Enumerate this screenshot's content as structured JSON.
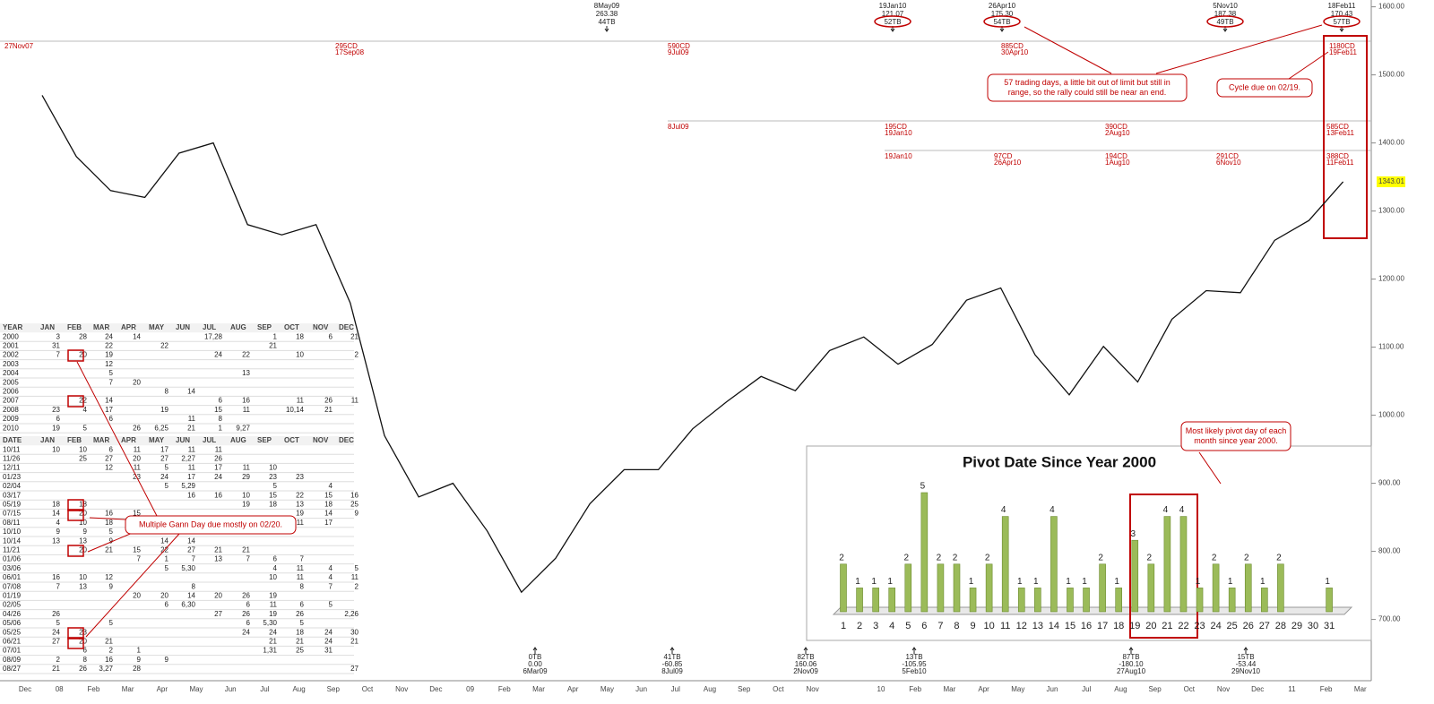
{
  "chart_data": [
    {
      "type": "line",
      "color": "#111111",
      "categories": [
        "Dec",
        "08",
        "Feb",
        "Mar",
        "Apr",
        "May",
        "Jun",
        "Jul",
        "Aug",
        "Sep",
        "Oct",
        "Nov",
        "Dec",
        "09",
        "Feb",
        "Mar",
        "Apr",
        "May",
        "Jun",
        "Jul",
        "Aug",
        "Sep",
        "Oct",
        "Nov",
        null,
        "10",
        "Feb",
        "Mar",
        "Apr",
        "May",
        "Jun",
        "Jul",
        "Aug",
        "Sep",
        "Oct",
        "Nov",
        "Dec",
        "11",
        "Feb",
        "Mar"
      ],
      "values": [
        1470,
        1380,
        1330,
        1320,
        1385,
        1400,
        1280,
        1265,
        1280,
        1165,
        970,
        880,
        900,
        830,
        740,
        790,
        870,
        920,
        920,
        980,
        1020,
        1057,
        1036,
        1095,
        1115,
        1075,
        1104,
        1169,
        1187,
        1089,
        1030,
        1101,
        1049,
        1141,
        1183,
        1180,
        1257,
        1286,
        1343,
        null
      ],
      "ylim": [
        610,
        1610
      ],
      "yticks": [
        {
          "value": 700,
          "label": "700.00"
        },
        {
          "value": 800,
          "label": "800.00"
        },
        {
          "value": 900,
          "label": "900.00"
        },
        {
          "value": 1000,
          "label": "1000.00"
        },
        {
          "value": 1100,
          "label": "1100.00"
        },
        {
          "value": 1200,
          "label": "1200.00"
        },
        {
          "value": 1300,
          "label": "1300.00"
        },
        {
          "value": 1400,
          "label": "1400.00"
        },
        {
          "value": 1500,
          "label": "1500.00"
        },
        {
          "value": 1600,
          "label": "1600.00"
        }
      ],
      "last_value": 1343.01,
      "last_color": "#ffff00"
    },
    {
      "type": "bar",
      "title": "Pivot Date Since Year 2000",
      "color": "#9bbb59",
      "categories": [
        "1",
        "2",
        "3",
        "4",
        "5",
        "6",
        "7",
        "8",
        "9",
        "10",
        "11",
        "12",
        "13",
        "14",
        "15",
        "16",
        "17",
        "18",
        "19",
        "20",
        "21",
        "22",
        "23",
        "24",
        "25",
        "26",
        "27",
        "28",
        "29",
        "30",
        "31"
      ],
      "values": [
        2,
        1,
        1,
        1,
        2,
        5,
        2,
        2,
        1,
        2,
        4,
        1,
        1,
        4,
        1,
        1,
        2,
        1,
        3,
        2,
        4,
        4,
        1,
        2,
        1,
        2,
        1,
        2,
        null,
        null,
        1
      ]
    }
  ],
  "annotations": {
    "tops": [
      [
        "8May09",
        "263.38",
        "44TB"
      ],
      [
        "19Jan10",
        "121.07",
        "52TB"
      ],
      [
        "26Apr10",
        "175.30",
        "54TB"
      ],
      [
        "5Nov10",
        "187.38",
        "49TB"
      ],
      [
        "18Feb11",
        "170.43",
        "57TB"
      ]
    ],
    "bottoms": [
      [
        "0TB",
        "0.00",
        "6Mar09"
      ],
      [
        "41TB",
        "-60.85",
        "8Jul09"
      ],
      [
        "82TB",
        "160.06",
        "2Nov09"
      ],
      [
        "13TB",
        "-105.95",
        "5Feb10"
      ],
      [
        "87TB",
        "-180.10",
        "27Aug10"
      ],
      [
        "15TB",
        "-53.44",
        "29Nov10"
      ]
    ],
    "cycles": [
      [
        "27Nov07"
      ],
      [
        "295CD",
        "17Sep08"
      ],
      [
        "590CD",
        "9Jul09"
      ],
      [
        "885CD",
        "30Apr10"
      ],
      [
        "1180CD",
        "19Feb11"
      ],
      [
        "8Jul09"
      ],
      [
        "195CD",
        "19Jan10"
      ],
      [
        "390CD",
        "2Aug10"
      ],
      [
        "585CD",
        "13Feb11"
      ],
      [
        "19Jan10"
      ],
      [
        "97CD",
        "26Apr10"
      ],
      [
        "194CD",
        "1Aug10"
      ],
      [
        "291CD",
        "6Nov10"
      ],
      [
        "388CD",
        "11Feb11"
      ]
    ],
    "callouts": [
      [
        "57 trading days, a little bit out of limit but still in",
        "range, so the rally could still be near an end."
      ],
      [
        "Cycle due on 02/19."
      ],
      [
        "Multiple Gann Day due mostly on 02/20."
      ],
      [
        "Most likely pivot day of each",
        "month since year 2000."
      ]
    ]
  },
  "year_table": {
    "header": [
      "YEAR",
      "JAN",
      "FEB",
      "MAR",
      "APR",
      "MAY",
      "JUN",
      "JUL",
      "AUG",
      "SEP",
      "OCT",
      "NOV",
      "DEC"
    ],
    "rows": [
      [
        "2000",
        3,
        28,
        24,
        14,
        null,
        null,
        "17,28",
        null,
        1,
        18,
        6,
        21
      ],
      [
        "2001",
        31,
        null,
        22,
        null,
        22,
        null,
        null,
        null,
        21,
        null,
        null,
        null
      ],
      [
        "2002",
        7,
        20,
        19,
        null,
        null,
        null,
        24,
        22,
        null,
        10,
        null,
        2
      ],
      [
        "2003",
        null,
        null,
        12,
        null,
        null,
        null,
        null,
        null,
        null,
        null,
        null,
        null
      ],
      [
        "2004",
        null,
        null,
        5,
        null,
        null,
        null,
        null,
        13,
        null,
        null,
        null,
        null
      ],
      [
        "2005",
        null,
        null,
        7,
        20,
        null,
        null,
        null,
        null,
        null,
        null,
        null,
        null
      ],
      [
        "2006",
        null,
        null,
        null,
        null,
        8,
        14,
        null,
        null,
        null,
        null,
        null,
        null
      ],
      [
        "2007",
        null,
        22,
        14,
        null,
        null,
        null,
        6,
        16,
        null,
        11,
        26,
        11
      ],
      [
        "2008",
        23,
        4,
        17,
        null,
        19,
        null,
        15,
        11,
        null,
        "10,14",
        21,
        null
      ],
      [
        "2009",
        6,
        null,
        6,
        null,
        null,
        11,
        8,
        null,
        null,
        null,
        null,
        null
      ],
      [
        "2010",
        19,
        5,
        null,
        26,
        "6,25",
        21,
        1,
        "9,27",
        null,
        null,
        null,
        null
      ]
    ]
  },
  "date_table": {
    "header": [
      "DATE",
      "JAN",
      "FEB",
      "MAR",
      "APR",
      "MAY",
      "JUN",
      "JUL",
      "AUG",
      "SEP",
      "OCT",
      "NOV",
      "DEC"
    ],
    "rows": [
      [
        "10/11",
        10,
        10,
        6,
        11,
        17,
        11,
        11,
        null,
        null,
        null,
        null,
        null
      ],
      [
        "11/26",
        null,
        25,
        27,
        20,
        27,
        "2,27",
        26,
        null,
        null,
        null,
        null,
        null
      ],
      [
        "12/11",
        null,
        null,
        12,
        11,
        5,
        11,
        17,
        11,
        10,
        null,
        null,
        null
      ],
      [
        "01/23",
        null,
        null,
        null,
        23,
        24,
        17,
        24,
        29,
        23,
        23,
        null,
        null
      ],
      [
        "02/04",
        null,
        null,
        null,
        null,
        5,
        "5,29",
        null,
        null,
        5,
        null,
        4,
        null
      ],
      [
        "03/17",
        null,
        null,
        null,
        null,
        null,
        16,
        16,
        10,
        15,
        22,
        15,
        16
      ],
      [
        "05/19",
        18,
        18,
        null,
        null,
        null,
        null,
        null,
        19,
        18,
        13,
        18,
        25
      ],
      [
        "07/15",
        14,
        20,
        16,
        15,
        null,
        null,
        null,
        null,
        null,
        19,
        14,
        9
      ],
      [
        "08/11",
        4,
        10,
        18,
        null,
        null,
        null,
        null,
        null,
        null,
        11,
        17,
        null
      ],
      [
        "10/10",
        9,
        9,
        5,
        null,
        null,
        null,
        null,
        null,
        null,
        null,
        null,
        null
      ],
      [
        "10/14",
        13,
        13,
        9,
        null,
        14,
        14,
        null,
        null,
        null,
        null,
        null,
        null
      ],
      [
        "11/21",
        null,
        20,
        21,
        15,
        22,
        27,
        21,
        21,
        null,
        null,
        null,
        null
      ],
      [
        "01/06",
        null,
        null,
        null,
        7,
        1,
        7,
        13,
        7,
        6,
        7,
        null,
        null
      ],
      [
        "03/06",
        null,
        null,
        null,
        null,
        5,
        "5,30",
        null,
        null,
        4,
        11,
        4,
        5
      ],
      [
        "06/01",
        16,
        10,
        12,
        null,
        null,
        null,
        null,
        null,
        10,
        11,
        4,
        11
      ],
      [
        "07/08",
        7,
        13,
        9,
        null,
        null,
        8,
        null,
        null,
        null,
        8,
        7,
        2
      ],
      [
        "01/19",
        null,
        null,
        null,
        20,
        20,
        14,
        20,
        26,
        19,
        null,
        null,
        null
      ],
      [
        "02/05",
        null,
        null,
        null,
        null,
        6,
        "6,30",
        null,
        6,
        11,
        6,
        5,
        null
      ],
      [
        "04/26",
        26,
        null,
        null,
        null,
        null,
        null,
        27,
        26,
        19,
        26,
        null,
        "2,26"
      ],
      [
        "05/06",
        5,
        null,
        5,
        null,
        null,
        null,
        null,
        6,
        "5,30",
        5,
        null,
        null
      ],
      [
        "05/25",
        24,
        23,
        null,
        null,
        null,
        null,
        null,
        24,
        24,
        18,
        24,
        30
      ],
      [
        "06/21",
        27,
        20,
        21,
        null,
        null,
        null,
        null,
        null,
        21,
        21,
        24,
        21
      ],
      [
        "07/01",
        null,
        6,
        2,
        1,
        null,
        null,
        null,
        null,
        "1,31",
        25,
        31,
        null
      ],
      [
        "08/09",
        2,
        8,
        16,
        9,
        9,
        null,
        null,
        null,
        null,
        null,
        null,
        null
      ],
      [
        "08/27",
        21,
        26,
        "3,27",
        28,
        null,
        null,
        null,
        null,
        null,
        null,
        null,
        27
      ]
    ]
  }
}
